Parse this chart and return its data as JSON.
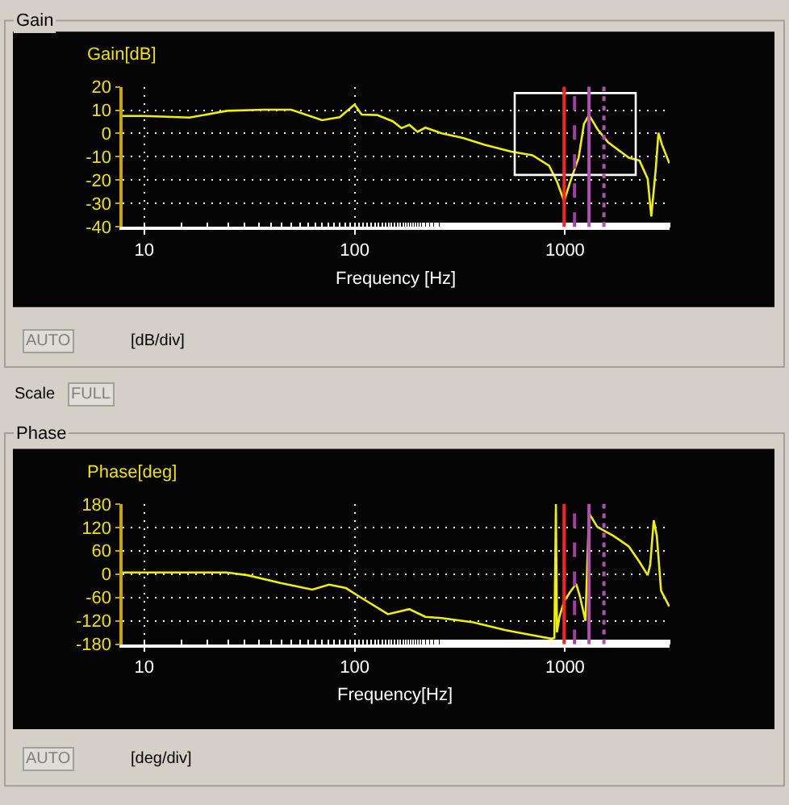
{
  "chart_data": [
    {
      "type": "line",
      "title": "Gain",
      "ylabel": "Gain[dB]",
      "xlabel": "Frequency [Hz]",
      "log": "x",
      "grid": true,
      "xlim": [
        7.9,
        3140
      ],
      "xticks": [
        10,
        100,
        1000
      ],
      "ylim": [
        -40,
        20
      ],
      "yticks": [
        -40,
        -30,
        -20,
        -10,
        0,
        10,
        20
      ],
      "series": [
        {
          "color": "#f0f000",
          "x": [
            7.9,
            10,
            16.4,
            24.7,
            37.3,
            50,
            70,
            85,
            100,
            108,
            128,
            152,
            167,
            182,
            199,
            217,
            259,
            327,
            415,
            556,
            700,
            840,
            915,
            990,
            1060,
            1160,
            1230,
            1300,
            1425,
            1600,
            2010,
            2260,
            2470,
            2570,
            2700,
            2780,
            2890,
            3130
          ],
          "values": [
            7.5,
            7.5,
            6.8,
            9.7,
            10.2,
            10.2,
            5.7,
            7,
            12.4,
            8.1,
            7.9,
            5.2,
            2.3,
            3.7,
            0.7,
            2.5,
            0.1,
            -1.9,
            -4.8,
            -7.8,
            -9.3,
            -13.8,
            -20.5,
            -29,
            -20.5,
            -10.4,
            4.1,
            7.9,
            1.9,
            -3.7,
            -10.4,
            -11.6,
            -19.4,
            -35.5,
            -14.9,
            0.3,
            -4.8,
            -12.7
          ]
        }
      ],
      "ref_lines": [
        {
          "axis": "x",
          "value": 990,
          "color": "#ff2020",
          "line_style": "solid"
        },
        {
          "axis": "x",
          "value": 1110,
          "color": "#a040a0",
          "line_style": "dashed"
        },
        {
          "axis": "x",
          "value": 1300,
          "color": "#b050b0",
          "line_style": "solid"
        },
        {
          "axis": "x",
          "value": 1530,
          "color": "#b050b0",
          "line_style": "dotted"
        }
      ],
      "annotations": [
        "AUTO",
        "[dB/div]",
        "Scale",
        "FULL"
      ]
    },
    {
      "type": "line",
      "title": "Phase",
      "ylabel": "Phase[deg]",
      "xlabel": "Frequency[Hz]",
      "log": "x",
      "grid": true,
      "xlim": [
        7.9,
        3140
      ],
      "xticks": [
        10,
        100,
        1000
      ],
      "ylim": [
        -180,
        180
      ],
      "yticks": [
        -180,
        -120,
        -60,
        0,
        60,
        120,
        180
      ],
      "series": [
        {
          "color": "#f0f000",
          "x": [
            7.9,
            24.7,
            31,
            44.4,
            63,
            75.6,
            91,
            104,
            144,
            182,
            217,
            259,
            366,
            522,
            700,
            862,
            890,
            905,
            915,
            940,
            990,
            1060,
            1130,
            1180,
            1250,
            1300,
            1425,
            1700,
            2010,
            2260,
            2470,
            2540,
            2640,
            2730,
            2860,
            3130
          ],
          "values": [
            4,
            4,
            -3,
            -23,
            -40,
            -27,
            -36,
            -56,
            -103,
            -90,
            -110,
            -113,
            -124,
            -144,
            -157,
            -166,
            -164,
            180,
            -150,
            -110,
            -70,
            -45,
            -25,
            -60,
            -120,
            156,
            121,
            98,
            71,
            31,
            -3,
            24,
            138,
            98,
            -43,
            -83
          ]
        }
      ],
      "ref_lines": [
        {
          "axis": "x",
          "value": 990,
          "color": "#ff2020",
          "line_style": "solid"
        },
        {
          "axis": "x",
          "value": 1110,
          "color": "#a040a0",
          "line_style": "dashed"
        },
        {
          "axis": "x",
          "value": 1300,
          "color": "#b050b0",
          "line_style": "solid"
        },
        {
          "axis": "x",
          "value": 1530,
          "color": "#b050b0",
          "line_style": "dotted"
        }
      ],
      "annotations": [
        "AUTO",
        "[deg/div]"
      ]
    }
  ]
}
